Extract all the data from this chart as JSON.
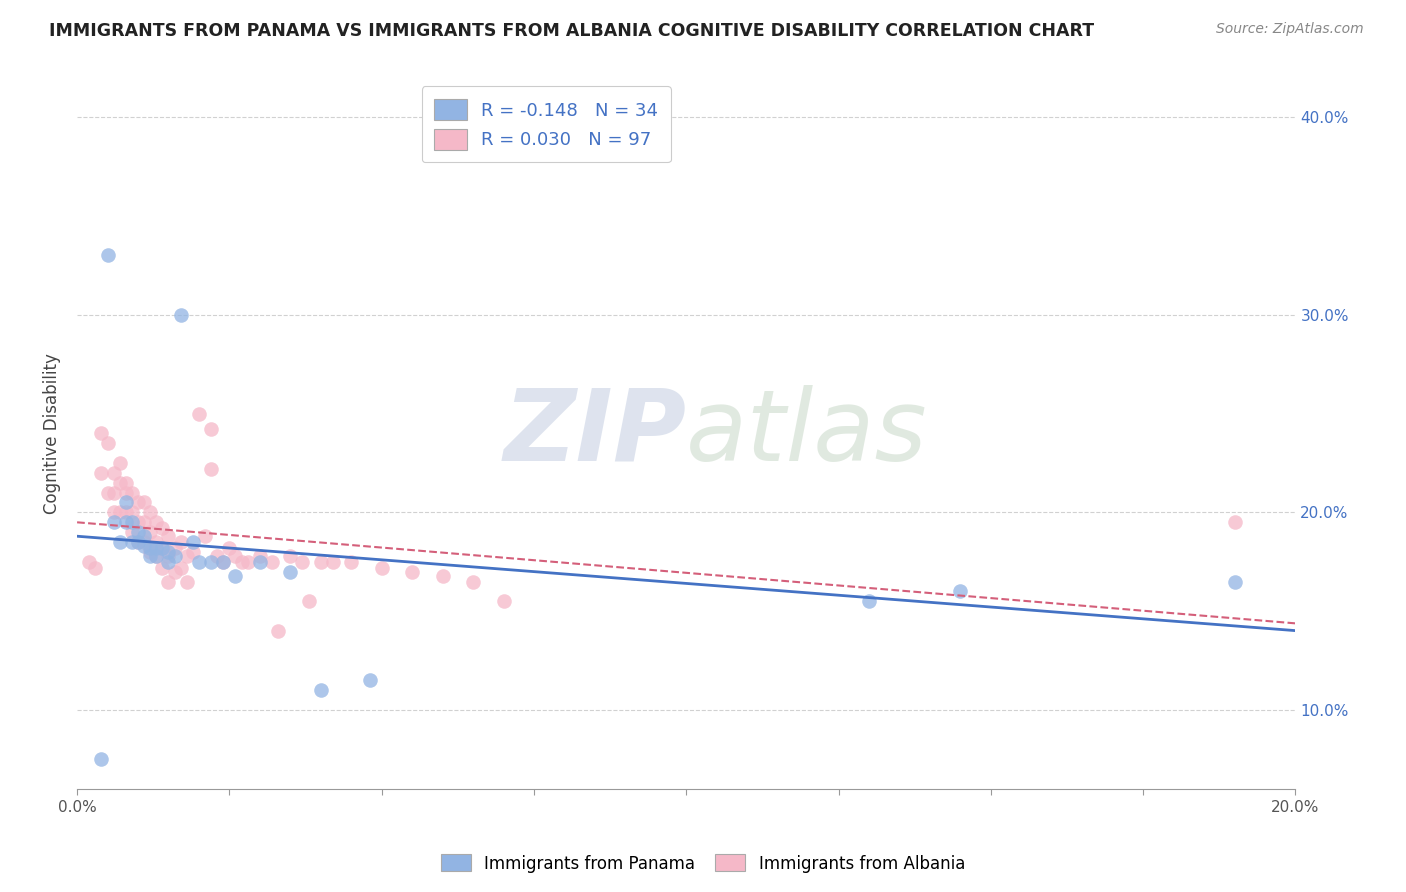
{
  "title": "IMMIGRANTS FROM PANAMA VS IMMIGRANTS FROM ALBANIA COGNITIVE DISABILITY CORRELATION CHART",
  "source": "Source: ZipAtlas.com",
  "ylabel": "Cognitive Disability",
  "xlim": [
    0.0,
    0.2
  ],
  "ylim": [
    0.06,
    0.42
  ],
  "x_ticks": [
    0.0,
    0.025,
    0.05,
    0.075,
    0.1,
    0.125,
    0.15,
    0.175,
    0.2
  ],
  "y_ticks": [
    0.1,
    0.2,
    0.3,
    0.4
  ],
  "panama_color": "#92b4e3",
  "albania_color": "#f5b8c8",
  "panama_line_color": "#4472c4",
  "albania_line_color": "#d45f7a",
  "watermark_zip": "ZIP",
  "watermark_atlas": "atlas",
  "panama_x": [
    0.004,
    0.005,
    0.006,
    0.007,
    0.008,
    0.008,
    0.009,
    0.009,
    0.01,
    0.01,
    0.011,
    0.011,
    0.012,
    0.012,
    0.013,
    0.013,
    0.014,
    0.015,
    0.015,
    0.016,
    0.017,
    0.019,
    0.02,
    0.022,
    0.024,
    0.026,
    0.03,
    0.035,
    0.04,
    0.048,
    0.13,
    0.145,
    0.19
  ],
  "panama_y": [
    0.075,
    0.33,
    0.195,
    0.185,
    0.205,
    0.195,
    0.195,
    0.185,
    0.19,
    0.185,
    0.188,
    0.183,
    0.182,
    0.178,
    0.182,
    0.178,
    0.182,
    0.18,
    0.175,
    0.178,
    0.3,
    0.185,
    0.175,
    0.175,
    0.175,
    0.168,
    0.175,
    0.17,
    0.11,
    0.115,
    0.155,
    0.16,
    0.165
  ],
  "albania_x": [
    0.002,
    0.003,
    0.004,
    0.004,
    0.005,
    0.005,
    0.006,
    0.006,
    0.006,
    0.007,
    0.007,
    0.007,
    0.008,
    0.008,
    0.008,
    0.009,
    0.009,
    0.009,
    0.01,
    0.01,
    0.01,
    0.011,
    0.011,
    0.011,
    0.012,
    0.012,
    0.012,
    0.013,
    0.013,
    0.013,
    0.014,
    0.014,
    0.014,
    0.015,
    0.015,
    0.015,
    0.016,
    0.016,
    0.017,
    0.017,
    0.018,
    0.018,
    0.019,
    0.02,
    0.021,
    0.022,
    0.022,
    0.023,
    0.024,
    0.025,
    0.026,
    0.027,
    0.028,
    0.03,
    0.032,
    0.033,
    0.035,
    0.037,
    0.038,
    0.04,
    0.042,
    0.045,
    0.05,
    0.055,
    0.06,
    0.065,
    0.07,
    0.19
  ],
  "albania_y": [
    0.175,
    0.172,
    0.24,
    0.22,
    0.235,
    0.21,
    0.22,
    0.21,
    0.2,
    0.225,
    0.215,
    0.2,
    0.21,
    0.2,
    0.215,
    0.21,
    0.2,
    0.19,
    0.205,
    0.195,
    0.185,
    0.205,
    0.195,
    0.185,
    0.2,
    0.19,
    0.18,
    0.195,
    0.185,
    0.178,
    0.192,
    0.182,
    0.172,
    0.188,
    0.178,
    0.165,
    0.182,
    0.17,
    0.185,
    0.172,
    0.178,
    0.165,
    0.18,
    0.25,
    0.188,
    0.242,
    0.222,
    0.178,
    0.175,
    0.182,
    0.178,
    0.175,
    0.175,
    0.178,
    0.175,
    0.14,
    0.178,
    0.175,
    0.155,
    0.175,
    0.175,
    0.175,
    0.172,
    0.17,
    0.168,
    0.165,
    0.155,
    0.195
  ]
}
